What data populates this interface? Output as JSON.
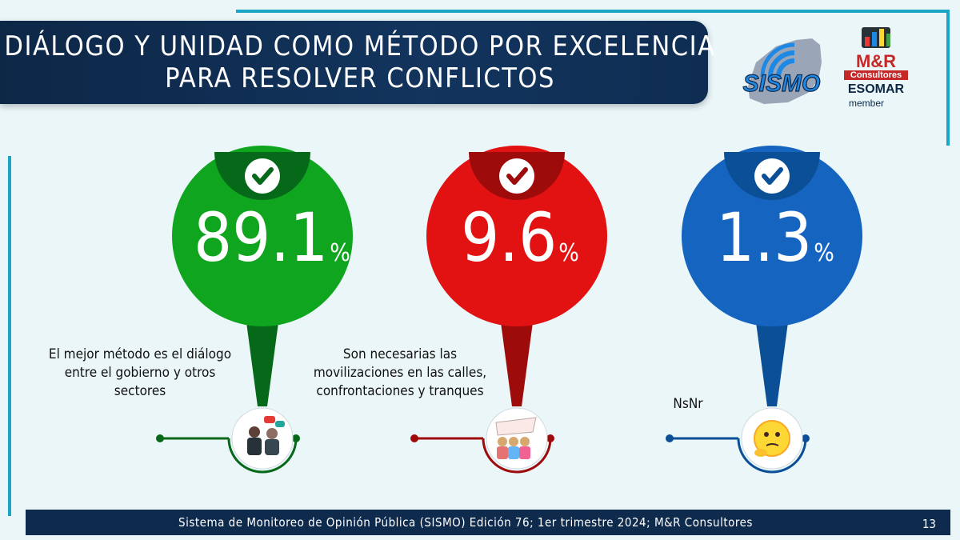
{
  "header": {
    "title_line1": "DIÁLOGO Y UNIDAD COMO MÉTODO POR EXCELENCIA",
    "title_line2": "PARA RESOLVER CONFLICTOS"
  },
  "logos": {
    "sismo": "SISMO",
    "mr_line1": "M&R",
    "mr_line2": "Consultores",
    "mr_line3": "ESOMAR",
    "mr_line4": "member"
  },
  "chart_data": {
    "type": "bar",
    "unit": "%",
    "categories": [
      "El mejor método es el diálogo entre el gobierno y otros sectores",
      "Son necesarias las movilizaciones en las calles, confrontaciones y tranques",
      "NsNr"
    ],
    "category_lines": [
      [
        "El mejor método es el diálogo",
        "entre el gobierno y otros",
        "sectores"
      ],
      [
        "Son necesarias las",
        "movilizaciones en las calles,",
        "confrontaciones y tranques"
      ],
      [
        "NsNr"
      ]
    ],
    "values": [
      89.1,
      9.6,
      1.3
    ],
    "value_labels": [
      "89.1",
      "9.6",
      "1.3"
    ],
    "colors": [
      "#0fa51f",
      "#e31212",
      "#1565c0"
    ],
    "dark_colors": [
      "#06691a",
      "#9e0b0b",
      "#0b4f97"
    ],
    "icons": [
      "dialogue-people-icon",
      "protest-crowd-icon",
      "thinking-emoji-icon"
    ]
  },
  "footer": {
    "text": "Sistema de Monitoreo de Opinión Pública (SISMO) Edición 76; 1er trimestre 2024; M&R Consultores",
    "page": "13"
  }
}
